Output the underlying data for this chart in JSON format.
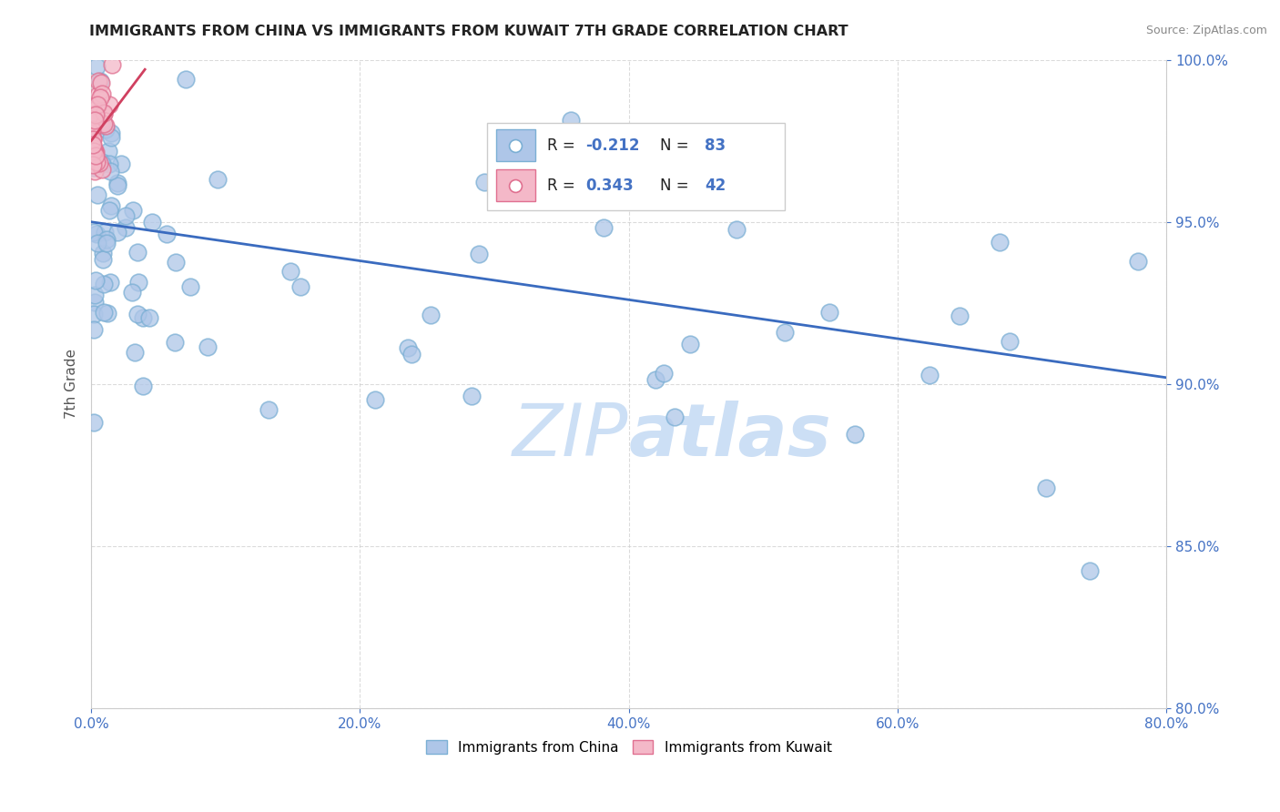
{
  "title": "IMMIGRANTS FROM CHINA VS IMMIGRANTS FROM KUWAIT 7TH GRADE CORRELATION CHART",
  "source": "Source: ZipAtlas.com",
  "ylabel": "7th Grade",
  "xlim": [
    0.0,
    80.0
  ],
  "ylim": [
    80.0,
    100.0
  ],
  "blue_R": -0.212,
  "blue_N": 83,
  "pink_R": 0.343,
  "pink_N": 42,
  "blue_color": "#aec6e8",
  "blue_edge_color": "#7bafd4",
  "pink_color": "#f4b8c8",
  "pink_edge_color": "#e07090",
  "blue_line_color": "#3a6bbf",
  "pink_line_color": "#d04060",
  "legend_R_color": "#4472c4",
  "tick_color": "#4472c4",
  "watermark_color": "#ccdff5",
  "ytick_labels": [
    "100.0%",
    "95.0%",
    "90.0%",
    "85.0%",
    "80.0%"
  ],
  "ytick_values": [
    100,
    95,
    90,
    85,
    80
  ],
  "xtick_labels": [
    "0.0%",
    "20.0%",
    "40.0%",
    "60.0%",
    "80.0%"
  ],
  "xtick_values": [
    0,
    20,
    40,
    60,
    80
  ],
  "blue_line_x": [
    0,
    80
  ],
  "blue_line_y": [
    95.0,
    90.2
  ],
  "pink_line_x": [
    0.0,
    4.0
  ],
  "pink_line_y": [
    97.5,
    99.7
  ]
}
